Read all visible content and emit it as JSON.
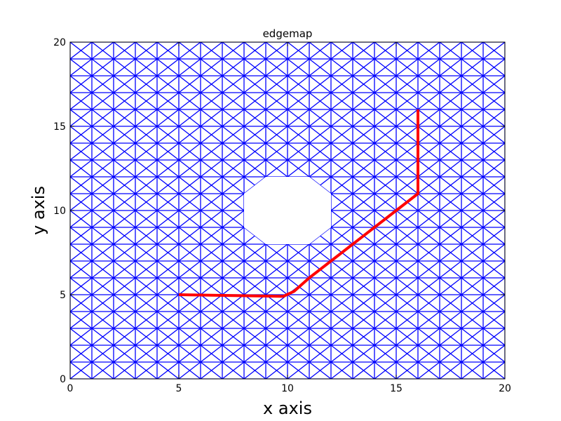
{
  "chart_data": {
    "type": "line",
    "title": "edgemap",
    "xlabel": "x axis",
    "ylabel": "y axis",
    "xlim": [
      0,
      20
    ],
    "ylim": [
      0,
      20
    ],
    "xticks": [
      0,
      5,
      10,
      15,
      20
    ],
    "yticks": [
      0,
      5,
      10,
      15,
      20
    ],
    "grid_step": 1,
    "obstacle": {
      "shape": "octagon",
      "vertices": [
        [
          9,
          12
        ],
        [
          11,
          12
        ],
        [
          12,
          11
        ],
        [
          12,
          9
        ],
        [
          11,
          8
        ],
        [
          9,
          8
        ],
        [
          8,
          9
        ],
        [
          8,
          11
        ]
      ]
    },
    "series": [
      {
        "kind": "edge-graph",
        "color": "#0000ff",
        "description": "lattice edges (horizontal, vertical, diagonal)"
      },
      {
        "kind": "path",
        "color": "#ff0000",
        "points": [
          [
            5,
            5
          ],
          [
            9.8,
            4.9
          ],
          [
            10.3,
            5.2
          ],
          [
            11,
            6
          ],
          [
            13,
            8
          ],
          [
            15,
            10
          ],
          [
            16,
            11
          ],
          [
            16,
            12
          ],
          [
            16,
            16
          ]
        ]
      }
    ],
    "legend": "none",
    "grid": false
  }
}
